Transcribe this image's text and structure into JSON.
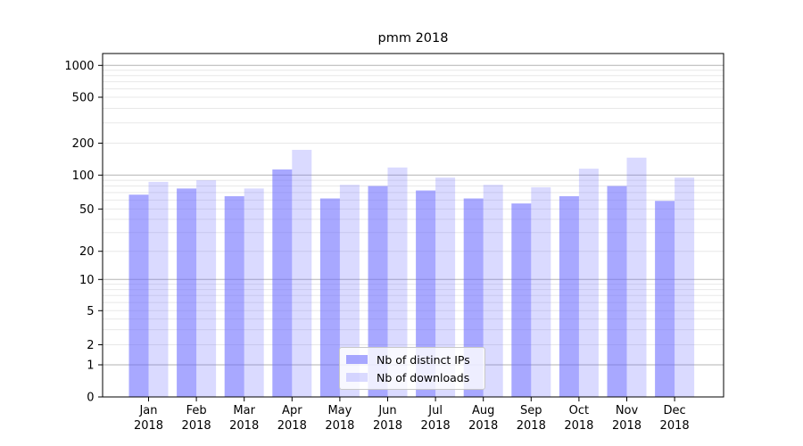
{
  "figure": {
    "title": "pmm 2018",
    "background_color": "#ffffff"
  },
  "chart_data": {
    "type": "bar",
    "title": "pmm 2018",
    "categories": [
      "Jan 2018",
      "Feb 2018",
      "Mar 2018",
      "Apr 2018",
      "May 2018",
      "Jun 2018",
      "Jul 2018",
      "Aug 2018",
      "Sep 2018",
      "Oct 2018",
      "Nov 2018",
      "Dec 2018"
    ],
    "x_tick_months": [
      "Jan",
      "Feb",
      "Mar",
      "Apr",
      "May",
      "Jun",
      "Jul",
      "Aug",
      "Sep",
      "Oct",
      "Nov",
      "Dec"
    ],
    "x_tick_year": "2018",
    "series": [
      {
        "name": "Nb of distinct IPs",
        "color": "rgba(102,102,255,0.57)",
        "values": [
          67,
          76,
          65,
          113,
          62,
          80,
          73,
          62,
          56,
          65,
          80,
          59
        ]
      },
      {
        "name": "Nb of downloads",
        "color": "rgba(102,102,255,0.24)",
        "values": [
          87,
          90,
          76,
          173,
          82,
          118,
          95,
          82,
          78,
          115,
          146,
          95
        ]
      }
    ],
    "y_axis": {
      "scale": "symlog",
      "tick_values": [
        0,
        1,
        2,
        5,
        10,
        20,
        50,
        100,
        200,
        500,
        1000
      ],
      "tick_labels": [
        "0",
        "1",
        "2",
        "5",
        "10",
        "20",
        "50",
        "100",
        "200",
        "500",
        "1000"
      ],
      "range": [
        0,
        1290
      ]
    },
    "grid": {
      "major_color": "#b3b3b3",
      "minor_color": "#e8e8e8",
      "major_values": [
        1,
        10,
        100,
        1000
      ]
    },
    "legend": {
      "position": "lower center",
      "entries": [
        "Nb of distinct IPs",
        "Nb of downloads"
      ]
    },
    "axis_color": "#000000",
    "text_color": "#000000"
  }
}
